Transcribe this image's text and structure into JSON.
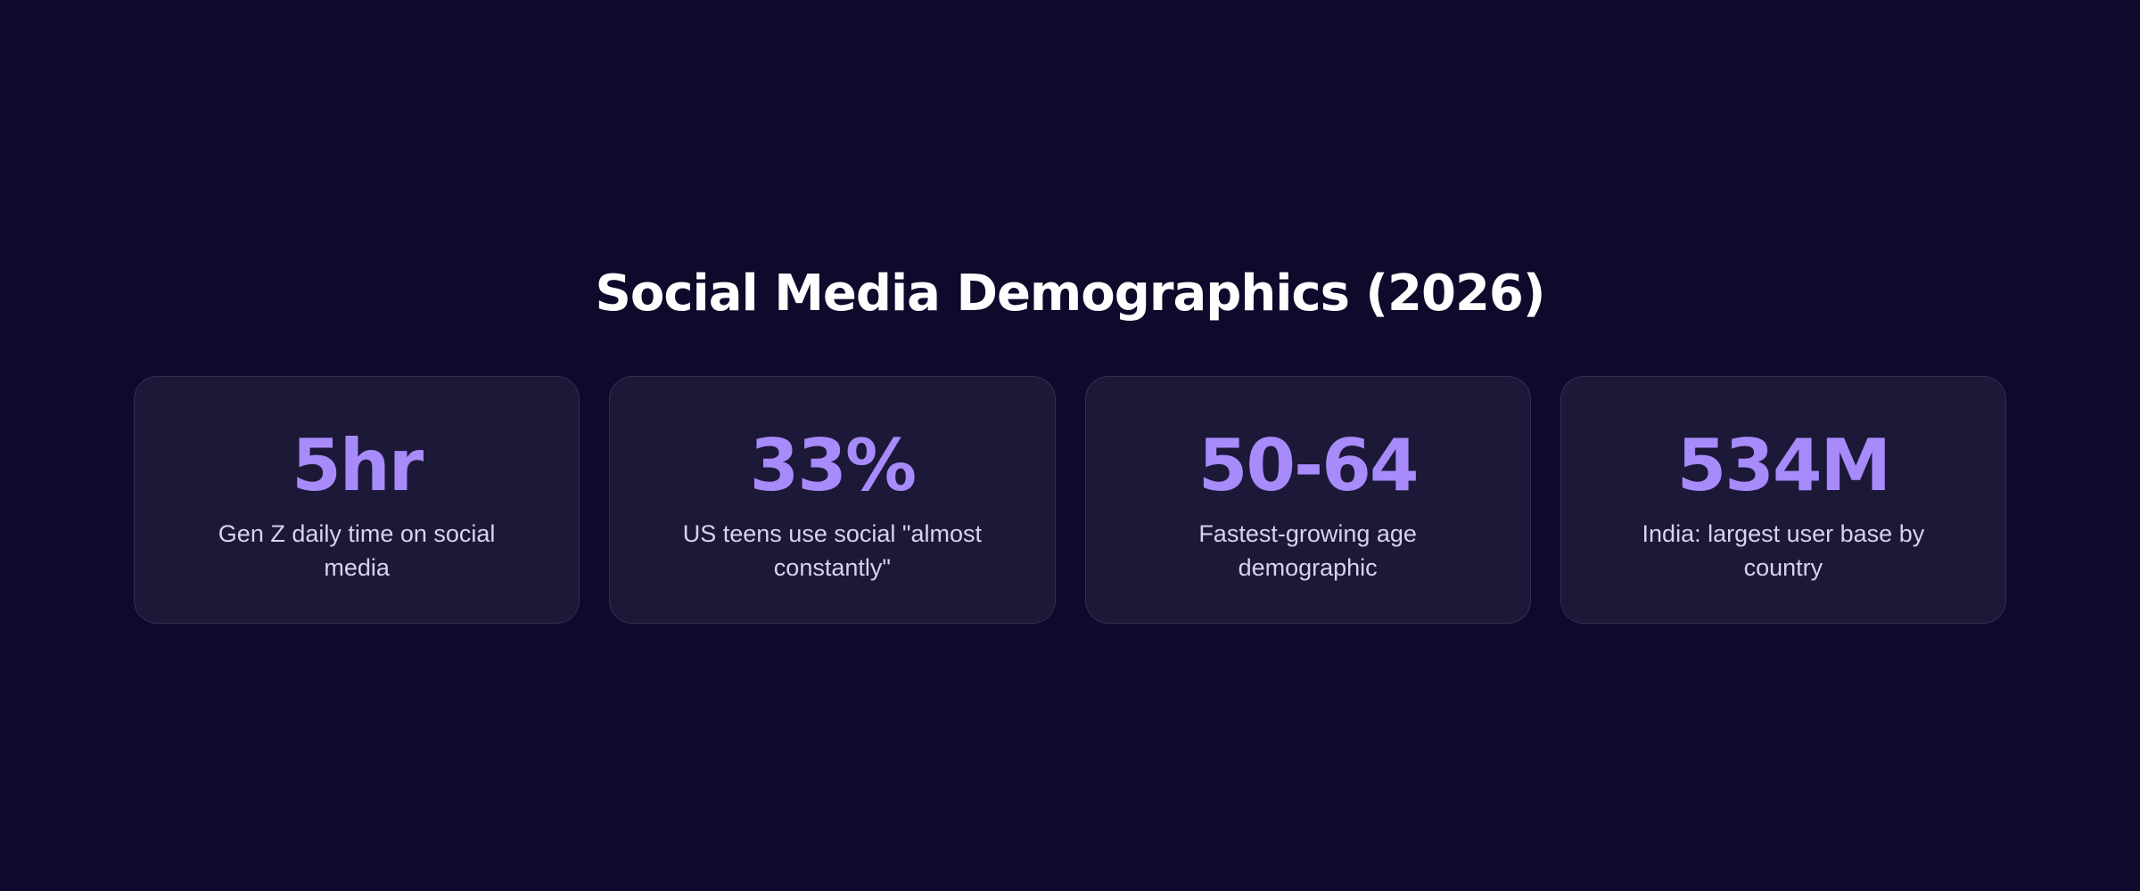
{
  "title": "Social Media Demographics (2026)",
  "colors": {
    "background": "#0e0a2b",
    "card_background": "#1c1838",
    "accent": "#a78bfa",
    "title": "#ffffff",
    "label": "#d6d3ee"
  },
  "cards": [
    {
      "stat": "5hr",
      "label": "Gen Z daily time on social media"
    },
    {
      "stat": "33%",
      "label": "US teens use social \"almost constantly\""
    },
    {
      "stat": "50-64",
      "label": "Fastest-growing age demographic"
    },
    {
      "stat": "534M",
      "label": "India: largest user base by country"
    }
  ]
}
